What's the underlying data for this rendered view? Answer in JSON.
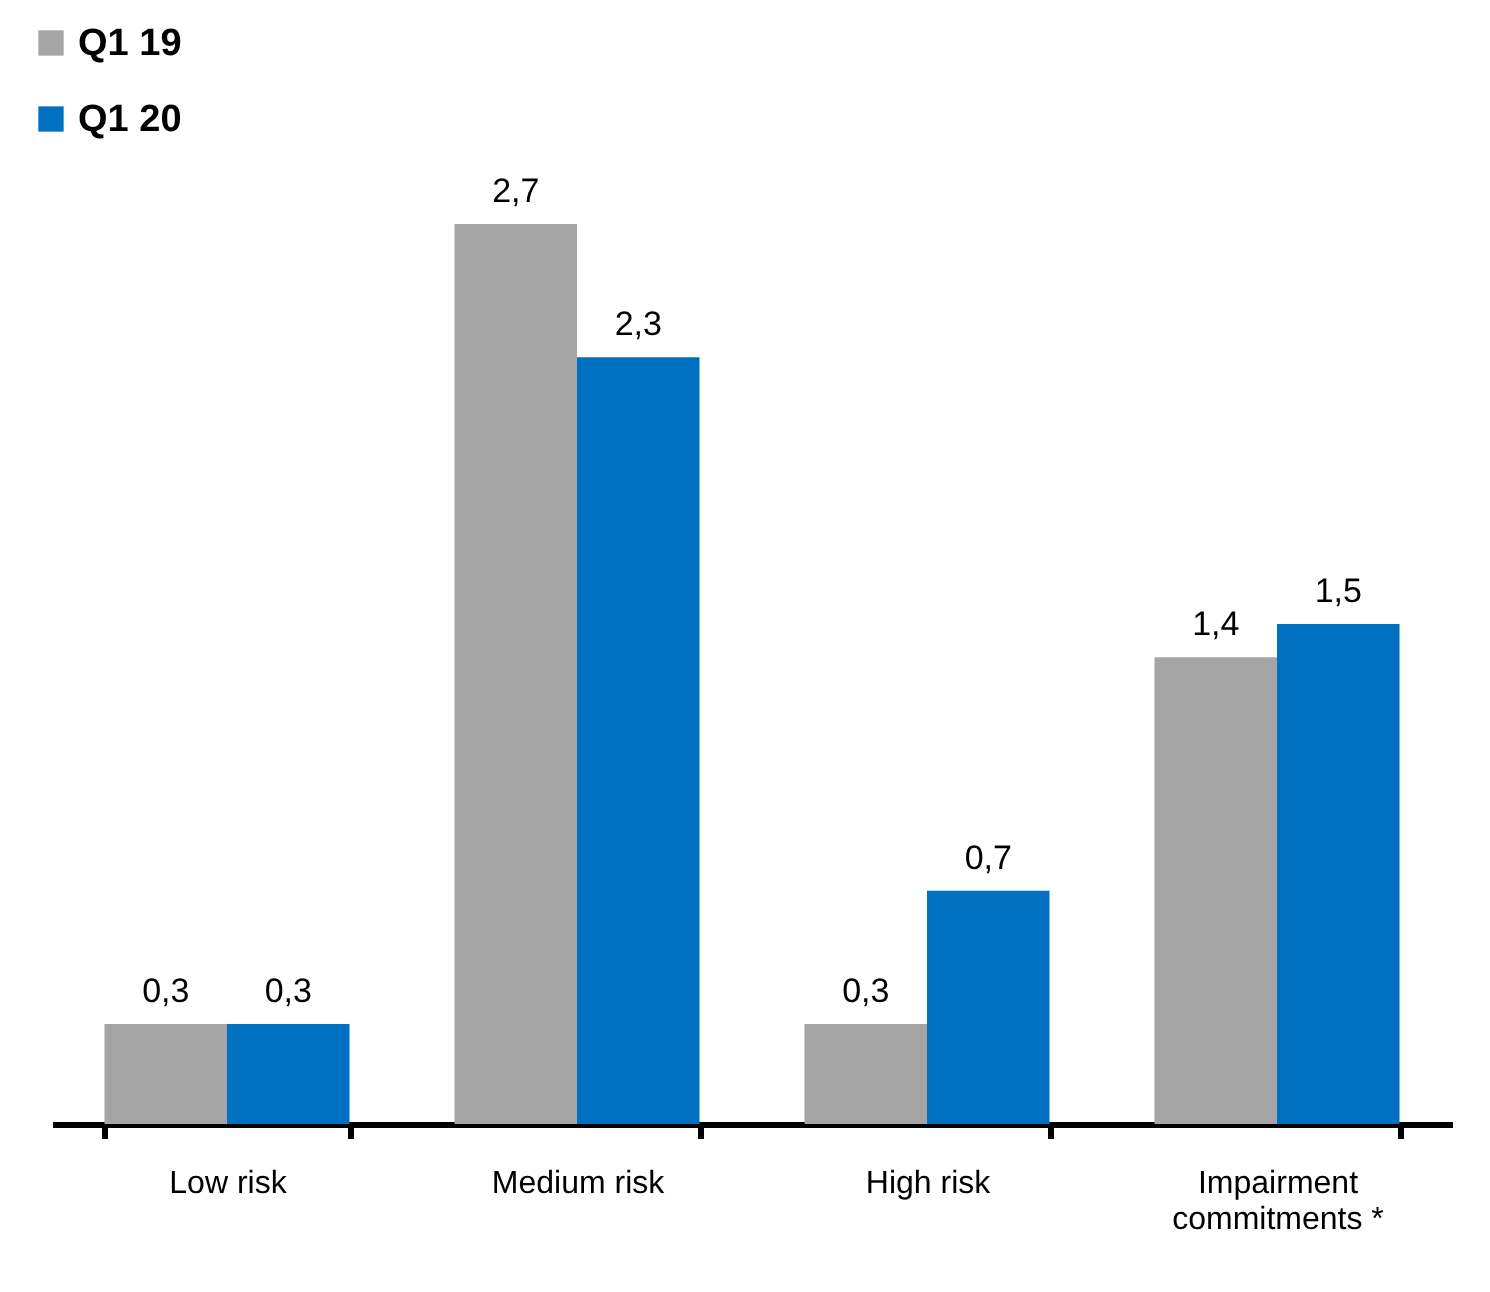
{
  "chart_data": {
    "type": "bar",
    "categories": [
      "Low risk",
      "Medium risk",
      "High risk",
      "Impairment commitments *"
    ],
    "series": [
      {
        "name": "Q1 19",
        "color": "#a5a5a5",
        "values": [
          0.3,
          2.7,
          0.3,
          1.4
        ],
        "value_labels": [
          "0,3",
          "2,7",
          "0,3",
          "1,4"
        ]
      },
      {
        "name": "Q1 20",
        "color": "#0070c0",
        "values": [
          0.3,
          2.3,
          0.7,
          1.5
        ],
        "value_labels": [
          "0,3",
          "2,3",
          "0,7",
          "1,5"
        ]
      }
    ],
    "legend": "top left",
    "grid": false
  }
}
